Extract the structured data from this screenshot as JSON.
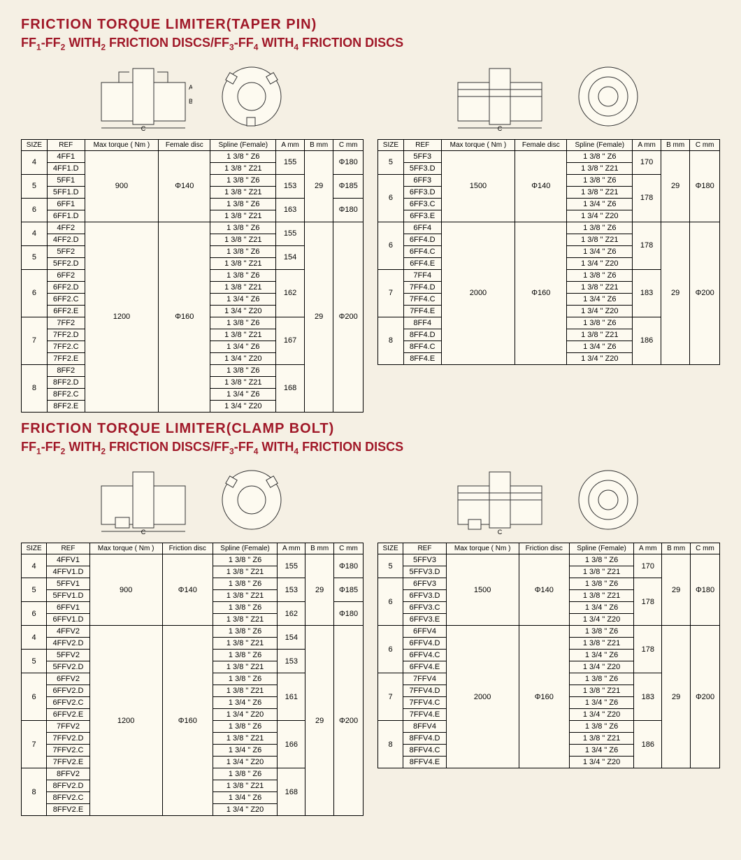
{
  "colors": {
    "heading": "#a01828",
    "page_bg": "#f5f0e4",
    "cell_bg": "#fdfaf0",
    "border": "#000000",
    "text": "#000000"
  },
  "typography": {
    "heading_font_size_pt": 15,
    "table_font_size_pt": 8,
    "font_family": "Arial"
  },
  "section1": {
    "title": "FRICTION TORQUE LIMITER(TAPER PIN)",
    "subtitle_parts": [
      "FF",
      "1",
      "-FF",
      "2",
      " WITH",
      "2",
      " FRICTION DISCS/FF",
      "3",
      "-FF",
      "4",
      " WITH",
      "4",
      " FRICTION DISCS"
    ]
  },
  "section2": {
    "title": "FRICTION TORQUE LIMITER(CLAMP BOLT)",
    "subtitle_parts": [
      "FF",
      "1",
      "-FF",
      "2",
      " WITH",
      "2",
      " FRICTION DISCS/FF",
      "3",
      "-FF",
      "4",
      " WITH",
      "4",
      " FRICTION DISCS"
    ]
  },
  "diagram_labels": {
    "A": "A",
    "B": "B",
    "C": "C"
  },
  "headers_female": [
    "SIZE",
    "REF",
    "Max torque ( Nm )",
    "Female disc",
    "Spline (Female)",
    "A mm",
    "B mm",
    "C mm"
  ],
  "headers_friction": [
    "SIZE",
    "REF",
    "Max torque ( Nm )",
    "Friction disc",
    "Spline (Female)",
    "A mm",
    "B mm",
    "C mm"
  ],
  "table1_left": {
    "groups": [
      {
        "size": "4",
        "refs": [
          "4FF1",
          "4FF1.D"
        ],
        "splines": [
          "1 3/8 \" Z6",
          "1 3/8 \" Z21"
        ],
        "A": "155",
        "torque": "900",
        "disc": "Φ140",
        "B": "29",
        "C": "Φ180"
      },
      {
        "size": "5",
        "refs": [
          "5FF1",
          "5FF1.D"
        ],
        "splines": [
          "1 3/8 \" Z6",
          "1 3/8 \" Z21"
        ],
        "A": "153",
        "torque": "900",
        "disc": "Φ140",
        "B": "29",
        "C": "Φ185"
      },
      {
        "size": "6",
        "refs": [
          "6FF1",
          "6FF1.D"
        ],
        "splines": [
          "1 3/8 \" Z6",
          "1 3/8 \" Z21"
        ],
        "A": "163",
        "torque": "900",
        "disc": "Φ140",
        "B": "29",
        "C": "Φ180"
      },
      {
        "size": "4",
        "refs": [
          "4FF2",
          "4FF2.D"
        ],
        "splines": [
          "1 3/8 \" Z6",
          "1 3/8 \" Z21"
        ],
        "A": "155",
        "torque": "1200",
        "disc": "Φ160",
        "B": "29",
        "C": "Φ200"
      },
      {
        "size": "5",
        "refs": [
          "5FF2",
          "5FF2.D"
        ],
        "splines": [
          "1 3/8 \" Z6",
          "1 3/8 \" Z21"
        ],
        "A": "154",
        "torque": "1200",
        "disc": "Φ160",
        "B": "29",
        "C": "Φ200"
      },
      {
        "size": "6",
        "refs": [
          "6FF2",
          "6FF2.D",
          "6FF2.C",
          "6FF2.E"
        ],
        "splines": [
          "1 3/8 \" Z6",
          "1 3/8 \" Z21",
          "1 3/4 \" Z6",
          "1 3/4 \" Z20"
        ],
        "A": "162",
        "torque": "1200",
        "disc": "Φ160",
        "B": "29",
        "C": "Φ200"
      },
      {
        "size": "7",
        "refs": [
          "7FF2",
          "7FF2.D",
          "7FF2.C",
          "7FF2.E"
        ],
        "splines": [
          "1 3/8 \" Z6",
          "1 3/8 \" Z21",
          "1 3/4 \" Z6",
          "1 3/4 \" Z20"
        ],
        "A": "167",
        "torque": "1200",
        "disc": "Φ160",
        "B": "29",
        "C": "Φ200"
      },
      {
        "size": "8",
        "refs": [
          "8FF2",
          "8FF2.D",
          "8FF2.C",
          "8FF2.E"
        ],
        "splines": [
          "1 3/8 \" Z6",
          "1 3/8 \" Z21",
          "1 3/4 \" Z6",
          "1 3/4 \" Z20"
        ],
        "A": "168",
        "torque": "1200",
        "disc": "Φ160",
        "B": "29",
        "C": "Φ200"
      }
    ],
    "merge_block1": {
      "rows": 6,
      "torque": "900",
      "disc": "Φ140",
      "B": "29"
    },
    "merge_block2": {
      "rows": 16,
      "torque": "1200",
      "disc": "Φ160",
      "B": "29",
      "C": "Φ200"
    }
  },
  "table1_right": {
    "groups": [
      {
        "size": "5",
        "refs": [
          "5FF3",
          "5FF3.D"
        ],
        "splines": [
          "1 3/8 \" Z6",
          "1 3/8 \" Z21"
        ],
        "A": "170",
        "torque": "1500",
        "disc": "Φ140",
        "B": "29",
        "C": "Φ180"
      },
      {
        "size": "6",
        "refs": [
          "6FF3",
          "6FF3.D",
          "6FF3.C",
          "6FF3.E"
        ],
        "splines": [
          "1 3/8 \" Z6",
          "1 3/8 \" Z21",
          "1 3/4 \" Z6",
          "1 3/4 \" Z20"
        ],
        "A": "178",
        "torque": "1500",
        "disc": "Φ140",
        "B": "29",
        "C": "Φ180"
      },
      {
        "size": "6",
        "refs": [
          "6FF4",
          "6FF4.D",
          "6FF4.C",
          "6FF4.E"
        ],
        "splines": [
          "1 3/8 \" Z6",
          "1 3/8 \" Z21",
          "1 3/4 \" Z6",
          "1 3/4 \" Z20"
        ],
        "A": "178",
        "torque": "2000",
        "disc": "Φ160",
        "B": "29",
        "C": "Φ200"
      },
      {
        "size": "7",
        "refs": [
          "7FF4",
          "7FF4.D",
          "7FF4.C",
          "7FF4.E"
        ],
        "splines": [
          "1 3/8 \" Z6",
          "1 3/8 \" Z21",
          "1 3/4 \" Z6",
          "1 3/4 \" Z20"
        ],
        "A": "183",
        "torque": "2000",
        "disc": "Φ160",
        "B": "29",
        "C": "Φ200"
      },
      {
        "size": "8",
        "refs": [
          "8FF4",
          "8FF4.D",
          "8FF4.C",
          "8FF4.E"
        ],
        "splines": [
          "1 3/8 \" Z6",
          "1 3/8 \" Z21",
          "1 3/4 \" Z6",
          "1 3/4 \" Z20"
        ],
        "A": "186",
        "torque": "2000",
        "disc": "Φ160",
        "B": "29",
        "C": "Φ200"
      }
    ]
  },
  "table2_left": {
    "groups": [
      {
        "size": "4",
        "refs": [
          "4FFV1",
          "4FFV1.D"
        ],
        "splines": [
          "1 3/8 \" Z6",
          "1 3/8 \" Z21"
        ],
        "A": "155",
        "torque": "900",
        "disc": "Φ140",
        "B": "29",
        "C": "Φ180"
      },
      {
        "size": "5",
        "refs": [
          "5FFV1",
          "5FFV1.D"
        ],
        "splines": [
          "1 3/8 \" Z6",
          "1 3/8 \" Z21"
        ],
        "A": "153",
        "torque": "900",
        "disc": "Φ140",
        "B": "29",
        "C": "Φ185"
      },
      {
        "size": "6",
        "refs": [
          "6FFV1",
          "6FFV1.D"
        ],
        "splines": [
          "1 3/8 \" Z6",
          "1 3/8 \" Z21"
        ],
        "A": "162",
        "torque": "900",
        "disc": "Φ140",
        "B": "29",
        "C": "Φ180"
      },
      {
        "size": "4",
        "refs": [
          "4FFV2",
          "4FFV2.D"
        ],
        "splines": [
          "1 3/8 \" Z6",
          "1 3/8 \" Z21"
        ],
        "A": "154",
        "torque": "1200",
        "disc": "Φ160",
        "B": "29",
        "C": "Φ200"
      },
      {
        "size": "5",
        "refs": [
          "5FFV2",
          "5FFV2.D"
        ],
        "splines": [
          "1 3/8 \" Z6",
          "1 3/8 \" Z21"
        ],
        "A": "153",
        "torque": "1200",
        "disc": "Φ160",
        "B": "29",
        "C": "Φ200"
      },
      {
        "size": "6",
        "refs": [
          "6FFV2",
          "6FFV2.D",
          "6FFV2.C",
          "6FFV2.E"
        ],
        "splines": [
          "1 3/8 \" Z6",
          "1 3/8 \" Z21",
          "1 3/4 \" Z6",
          "1 3/4 \" Z20"
        ],
        "A": "161",
        "torque": "1200",
        "disc": "Φ160",
        "B": "29",
        "C": "Φ200"
      },
      {
        "size": "7",
        "refs": [
          "7FFV2",
          "7FFV2.D",
          "7FFV2.C",
          "7FFV2.E"
        ],
        "splines": [
          "1 3/8 \" Z6",
          "1 3/8 \" Z21",
          "1 3/4 \" Z6",
          "1 3/4 \" Z20"
        ],
        "A": "166",
        "torque": "1200",
        "disc": "Φ160",
        "B": "29",
        "C": "Φ200"
      },
      {
        "size": "8",
        "refs": [
          "8FFV2",
          "8FFV2.D",
          "8FFV2.C",
          "8FFV2.E"
        ],
        "splines": [
          "1 3/8 \" Z6",
          "1 3/8 \" Z21",
          "1 3/4 \" Z6",
          "1 3/4 \" Z20"
        ],
        "A": "168",
        "torque": "1200",
        "disc": "Φ160",
        "B": "29",
        "C": "Φ200"
      }
    ]
  },
  "table2_right": {
    "groups": [
      {
        "size": "5",
        "refs": [
          "5FFV3",
          "5FFV3.D"
        ],
        "splines": [
          "1 3/8 \" Z6",
          "1 3/8 \" Z21"
        ],
        "A": "170",
        "torque": "1500",
        "disc": "Φ140",
        "B": "29",
        "C": "Φ180"
      },
      {
        "size": "6",
        "refs": [
          "6FFV3",
          "6FFV3.D",
          "6FFV3.C",
          "6FFV3.E"
        ],
        "splines": [
          "1 3/8 \" Z6",
          "1 3/8 \" Z21",
          "1 3/4 \" Z6",
          "1 3/4 \" Z20"
        ],
        "A": "178",
        "torque": "1500",
        "disc": "Φ140",
        "B": "29",
        "C": "Φ180"
      },
      {
        "size": "6",
        "refs": [
          "6FFV4",
          "6FFV4.D",
          "6FFV4.C",
          "6FFV4.E"
        ],
        "splines": [
          "1 3/8 \" Z6",
          "1 3/8 \" Z21",
          "1 3/4 \" Z6",
          "1 3/4 \" Z20"
        ],
        "A": "178",
        "torque": "2000",
        "disc": "Φ160",
        "B": "29",
        "C": "Φ200"
      },
      {
        "size": "7",
        "refs": [
          "7FFV4",
          "7FFV4.D",
          "7FFV4.C",
          "7FFV4.E"
        ],
        "splines": [
          "1 3/8 \" Z6",
          "1 3/8 \" Z21",
          "1 3/4 \" Z6",
          "1 3/4 \" Z20"
        ],
        "A": "183",
        "torque": "2000",
        "disc": "Φ160",
        "B": "29",
        "C": "Φ200"
      },
      {
        "size": "8",
        "refs": [
          "8FFV4",
          "8FFV4.D",
          "8FFV4.C",
          "8FFV4.E"
        ],
        "splines": [
          "1 3/8 \" Z6",
          "1 3/8 \" Z21",
          "1 3/4 \" Z6",
          "1 3/4 \" Z20"
        ],
        "A": "186",
        "torque": "2000",
        "disc": "Φ160",
        "B": "29",
        "C": "Φ200"
      }
    ]
  }
}
